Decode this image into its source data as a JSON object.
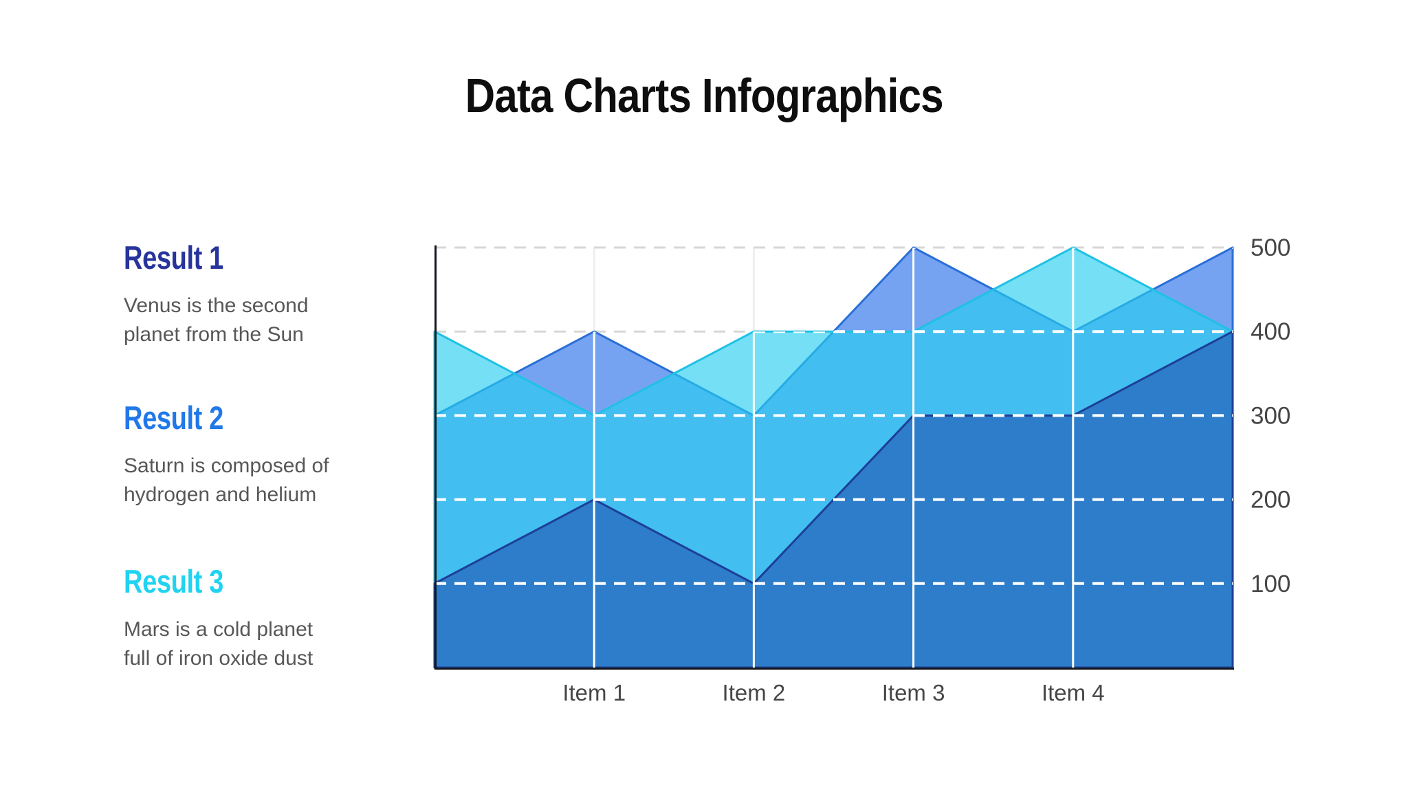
{
  "title": "Data Charts Infographics",
  "results": [
    {
      "label": "Result 1",
      "color": "#27349b",
      "desc_line1": "Venus is the second",
      "desc_line2": "planet from the Sun"
    },
    {
      "label": "Result 2",
      "color": "#2178e8",
      "desc_line1": "Saturn is composed of",
      "desc_line2": "hydrogen and helium"
    },
    {
      "label": "Result 3",
      "color": "#20d3f0",
      "desc_line1": "Mars is a cold planet",
      "desc_line2": "full of iron oxide dust"
    }
  ],
  "chart_data": {
    "type": "area",
    "x_labels": [
      "Item 1",
      "Item 2",
      "Item 3",
      "Item 4"
    ],
    "x_points": [
      "start",
      "Item 1",
      "Item 2",
      "Item 3",
      "Item 4",
      "end"
    ],
    "ylim": [
      0,
      500
    ],
    "yticks": [
      100,
      200,
      300,
      400,
      500
    ],
    "y_axis_side": "right",
    "grid": "horizontal dashed + vertical solid; white over areas, gray over background",
    "legend_position": "left column as Result 1/2/3",
    "series": [
      {
        "name": "Result 1",
        "values": [
          100,
          200,
          100,
          300,
          300,
          400
        ],
        "fill": "#2e7dca",
        "stroke": "#1c3f97",
        "fill_opacity": 1,
        "draw_order": 2
      },
      {
        "name": "Result 2",
        "values": [
          300,
          400,
          300,
          500,
          400,
          500
        ],
        "fill": "#2e73ec",
        "stroke": "#2a6fd6",
        "fill_opacity": 0.66,
        "draw_order": 0
      },
      {
        "name": "Result 3",
        "values": [
          400,
          300,
          400,
          400,
          500,
          400
        ],
        "fill": "#25ceef",
        "stroke": "#1fc1e4",
        "fill_opacity": 0.63,
        "draw_order": 1
      }
    ],
    "colors": {
      "grid_under": "#d7d7d7",
      "grid_under_vertical": "#efefef",
      "grid_over": "#ffffff",
      "axis": "#14171c",
      "tick_text": "#464646"
    }
  }
}
